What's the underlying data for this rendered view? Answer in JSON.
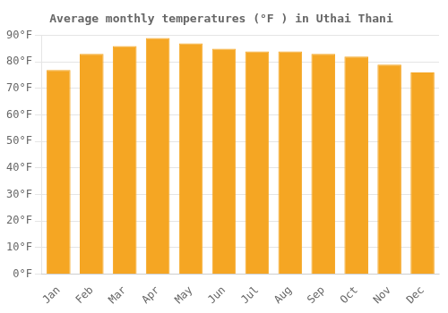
{
  "chart_data": {
    "type": "bar",
    "title": "Average monthly temperatures (°F ) in Uthai Thani",
    "categories": [
      "Jan",
      "Feb",
      "Mar",
      "Apr",
      "May",
      "Jun",
      "Jul",
      "Aug",
      "Sep",
      "Oct",
      "Nov",
      "Dec"
    ],
    "values": [
      77,
      83,
      86,
      89,
      87,
      85,
      84,
      84,
      83,
      82,
      79,
      76
    ],
    "color": "#F5A623",
    "ylim": [
      0,
      90
    ],
    "yticks": [
      {
        "value": 0,
        "label": "0°F"
      },
      {
        "value": 10,
        "label": "10°F"
      },
      {
        "value": 20,
        "label": "20°F"
      },
      {
        "value": 30,
        "label": "30°F"
      },
      {
        "value": 40,
        "label": "40°F"
      },
      {
        "value": 50,
        "label": "50°F"
      },
      {
        "value": 60,
        "label": "60°F"
      },
      {
        "value": 70,
        "label": "70°F"
      },
      {
        "value": 80,
        "label": "80°F"
      },
      {
        "value": 90,
        "label": "90°F"
      }
    ],
    "grid": true
  }
}
